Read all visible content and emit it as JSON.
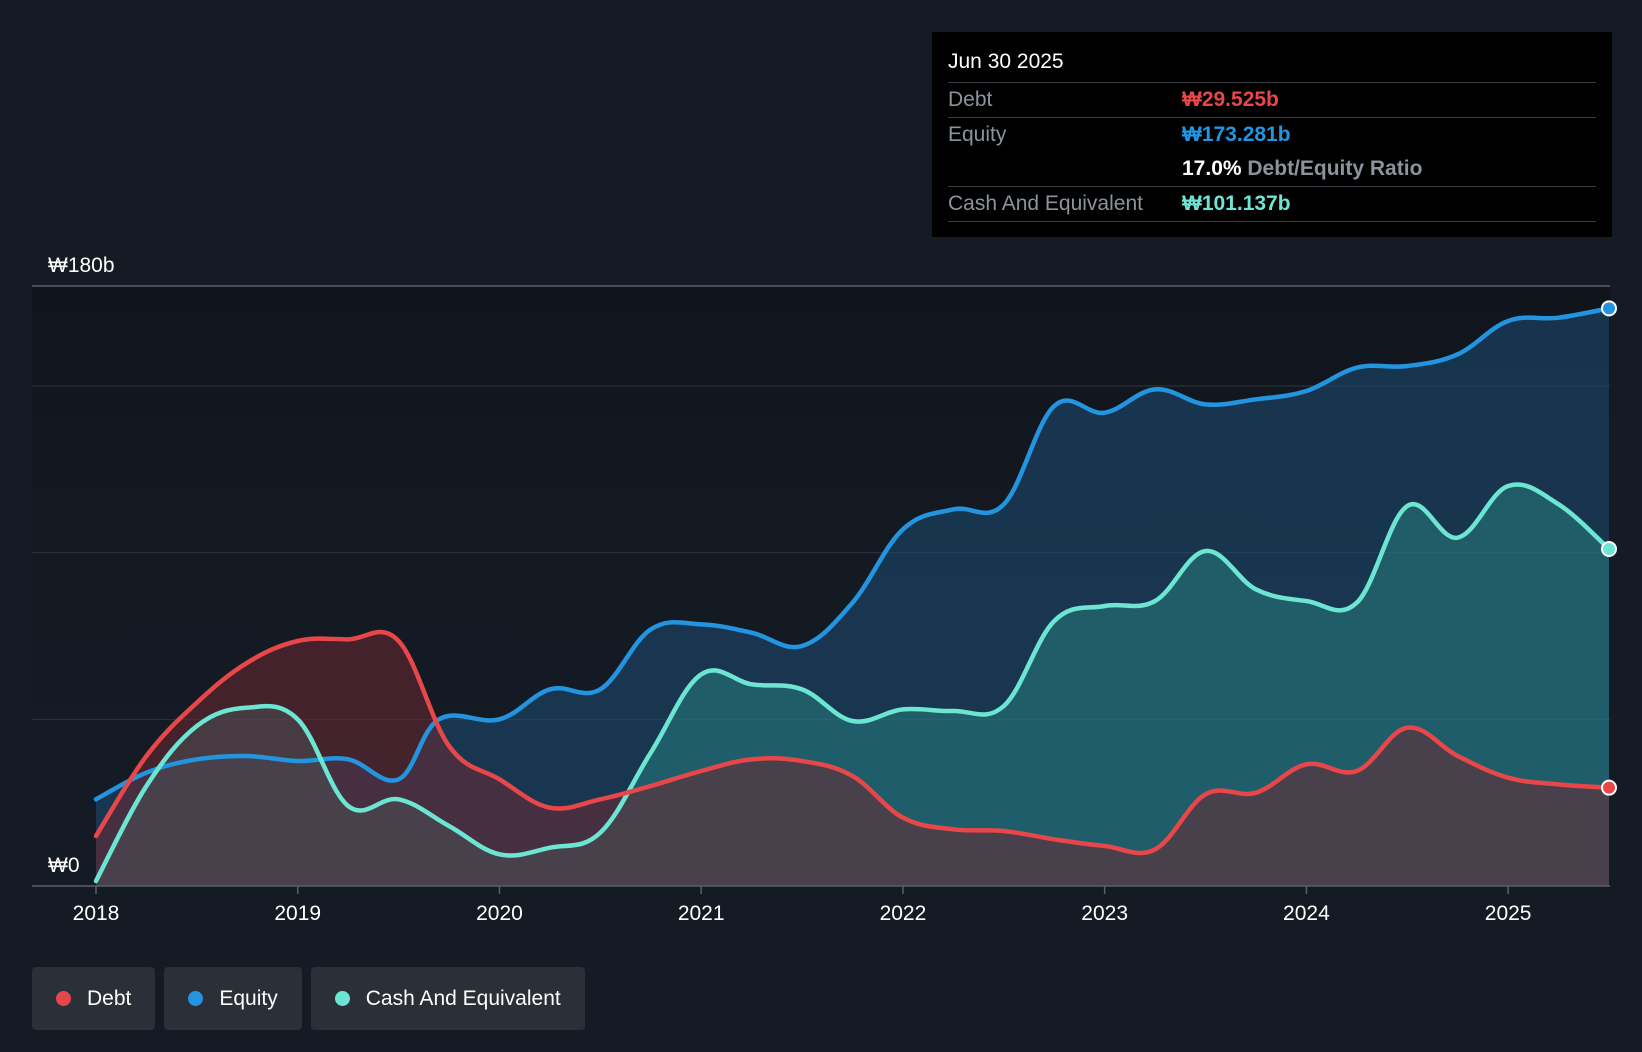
{
  "colors": {
    "background": "#151b24",
    "debt": "#e84749",
    "equity": "#2394df",
    "cash": "#6ce5d3",
    "grid": "#2e343d",
    "axis_text": "#ffffff",
    "muted_text": "#8d939c"
  },
  "tooltip": {
    "date": "Jun 30 2025",
    "debt_label": "Debt",
    "debt_value": "₩29.525b",
    "equity_label": "Equity",
    "equity_value": "₩173.281b",
    "ratio_value": "17.0%",
    "ratio_label": "Debt/Equity Ratio",
    "cash_label": "Cash And Equivalent",
    "cash_value": "₩101.137b"
  },
  "legend": [
    {
      "name": "debt",
      "label": "Debt",
      "icon": "dot",
      "color": "#e84749"
    },
    {
      "name": "equity",
      "label": "Equity",
      "icon": "dot",
      "color": "#2394df"
    },
    {
      "name": "cash",
      "label": "Cash And Equivalent",
      "icon": "dot",
      "color": "#6ce5d3"
    }
  ],
  "chart_data": {
    "type": "area",
    "title": "",
    "xlabel": "",
    "ylabel": "",
    "ylim": [
      0,
      180
    ],
    "xlim": [
      2018.0,
      2025.5
    ],
    "y_tick_labels": [
      {
        "value": 180,
        "label": "₩180b"
      },
      {
        "value": 0,
        "label": "₩0"
      }
    ],
    "gridlines": [
      0,
      50,
      100,
      150,
      180
    ],
    "x_ticks": [
      2018,
      2019,
      2020,
      2021,
      2022,
      2023,
      2024,
      2025
    ],
    "x_tick_labels": [
      "2018",
      "2019",
      "2020",
      "2021",
      "2022",
      "2023",
      "2024",
      "2025"
    ],
    "series": [
      {
        "name": "Equity",
        "key": "equity",
        "points": [
          [
            2018.0,
            26
          ],
          [
            2018.25,
            34
          ],
          [
            2018.5,
            38
          ],
          [
            2018.75,
            39
          ],
          [
            2019.0,
            37.5
          ],
          [
            2019.25,
            38
          ],
          [
            2019.5,
            32
          ],
          [
            2019.7,
            50
          ],
          [
            2020.0,
            50
          ],
          [
            2020.25,
            59
          ],
          [
            2020.5,
            59
          ],
          [
            2020.75,
            77
          ],
          [
            2021.0,
            78.5
          ],
          [
            2021.25,
            76
          ],
          [
            2021.5,
            72
          ],
          [
            2021.75,
            85
          ],
          [
            2022.0,
            107
          ],
          [
            2022.25,
            113
          ],
          [
            2022.5,
            114.5
          ],
          [
            2022.75,
            144
          ],
          [
            2023.0,
            142
          ],
          [
            2023.25,
            149
          ],
          [
            2023.5,
            144.5
          ],
          [
            2023.75,
            146
          ],
          [
            2024.0,
            148.5
          ],
          [
            2024.25,
            155.5
          ],
          [
            2024.5,
            156
          ],
          [
            2024.75,
            159.5
          ],
          [
            2025.0,
            169.5
          ],
          [
            2025.25,
            170.5
          ],
          [
            2025.5,
            173.3
          ]
        ]
      },
      {
        "name": "Cash And Equivalent",
        "key": "cash",
        "points": [
          [
            2018.0,
            1.5
          ],
          [
            2018.25,
            30
          ],
          [
            2018.5,
            48
          ],
          [
            2018.75,
            53.5
          ],
          [
            2019.0,
            50
          ],
          [
            2019.25,
            24
          ],
          [
            2019.5,
            26
          ],
          [
            2019.75,
            18
          ],
          [
            2020.0,
            9.5
          ],
          [
            2020.25,
            11.5
          ],
          [
            2020.5,
            16
          ],
          [
            2020.75,
            40
          ],
          [
            2021.0,
            63.5
          ],
          [
            2021.25,
            60.5
          ],
          [
            2021.5,
            59
          ],
          [
            2021.75,
            49.5
          ],
          [
            2022.0,
            53
          ],
          [
            2022.25,
            52.5
          ],
          [
            2022.5,
            54
          ],
          [
            2022.75,
            79.5
          ],
          [
            2023.0,
            84
          ],
          [
            2023.25,
            85.5
          ],
          [
            2023.5,
            100.5
          ],
          [
            2023.75,
            89
          ],
          [
            2024.0,
            85.5
          ],
          [
            2024.25,
            85
          ],
          [
            2024.5,
            114
          ],
          [
            2024.75,
            104.5
          ],
          [
            2025.0,
            120
          ],
          [
            2025.25,
            114.5
          ],
          [
            2025.5,
            101.1
          ]
        ]
      },
      {
        "name": "Debt",
        "key": "debt",
        "points": [
          [
            2018.0,
            15
          ],
          [
            2018.25,
            39
          ],
          [
            2018.5,
            55
          ],
          [
            2018.75,
            67
          ],
          [
            2019.0,
            73.5
          ],
          [
            2019.25,
            74
          ],
          [
            2019.5,
            73.5
          ],
          [
            2019.75,
            42
          ],
          [
            2020.0,
            32
          ],
          [
            2020.25,
            23.5
          ],
          [
            2020.5,
            26
          ],
          [
            2020.75,
            30
          ],
          [
            2021.0,
            34.5
          ],
          [
            2021.25,
            38
          ],
          [
            2021.5,
            37.5
          ],
          [
            2021.75,
            33
          ],
          [
            2022.0,
            20.5
          ],
          [
            2022.25,
            17
          ],
          [
            2022.5,
            16.5
          ],
          [
            2022.75,
            14
          ],
          [
            2023.0,
            12
          ],
          [
            2023.25,
            11
          ],
          [
            2023.5,
            27.5
          ],
          [
            2023.75,
            28
          ],
          [
            2024.0,
            36.5
          ],
          [
            2024.25,
            34.5
          ],
          [
            2024.5,
            47.5
          ],
          [
            2024.75,
            39
          ],
          [
            2025.0,
            32.5
          ],
          [
            2025.25,
            30.5
          ],
          [
            2025.5,
            29.5
          ]
        ]
      }
    ]
  }
}
